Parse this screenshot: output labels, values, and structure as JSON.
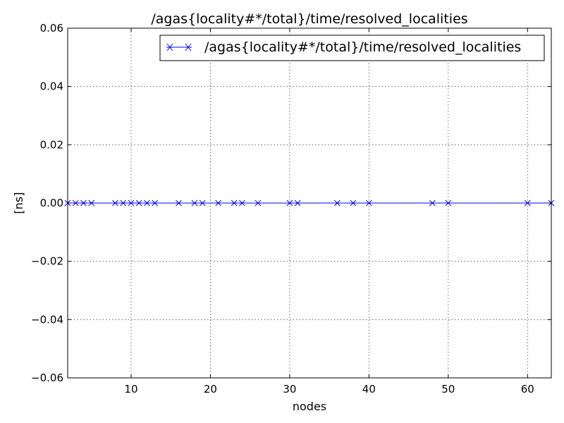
{
  "chart_data": {
    "type": "line",
    "title": "/agas{locality#*/total}/time/resolved_localities",
    "xlabel": "nodes",
    "ylabel": "[ns]",
    "xlim": [
      2,
      63
    ],
    "ylim": [
      -0.06,
      0.06
    ],
    "xticks": [
      10,
      20,
      30,
      40,
      50,
      60
    ],
    "yticks": [
      -0.06,
      -0.04,
      -0.02,
      0.0,
      0.02,
      0.04,
      0.06
    ],
    "ytick_labels": [
      "−0.06",
      "−0.04",
      "−0.02",
      "0.00",
      "0.02",
      "0.04",
      "0.06"
    ],
    "grid": true,
    "legend_position": "top-right",
    "series": [
      {
        "name": "/agas{locality#*/total}/time/resolved_localities",
        "color": "#0000ff",
        "marker": "x",
        "x": [
          2,
          3,
          4,
          5,
          8,
          9,
          10,
          11,
          12,
          13,
          16,
          18,
          19,
          21,
          23,
          24,
          26,
          30,
          31,
          36,
          38,
          40,
          48,
          50,
          60,
          63
        ],
        "y": [
          0,
          0,
          0,
          0,
          0,
          0,
          0,
          0,
          0,
          0,
          0,
          0,
          0,
          0,
          0,
          0,
          0,
          0,
          0,
          0,
          0,
          0,
          0,
          0,
          0,
          0
        ]
      }
    ]
  }
}
